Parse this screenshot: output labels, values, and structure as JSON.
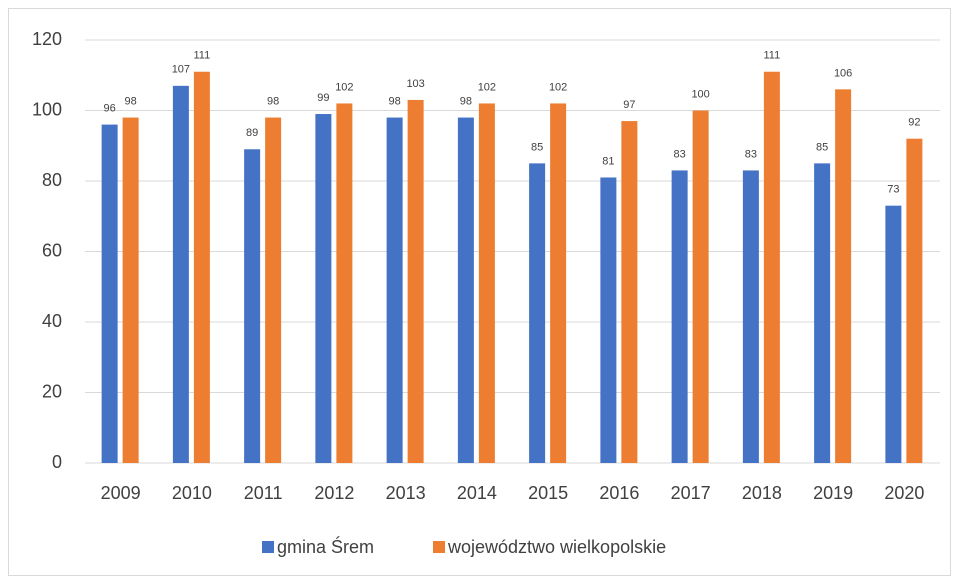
{
  "chart_data": {
    "type": "bar",
    "categories": [
      "2009",
      "2010",
      "2011",
      "2012",
      "2013",
      "2014",
      "2015",
      "2016",
      "2017",
      "2018",
      "2019",
      "2020"
    ],
    "series": [
      {
        "name": "gmina Śrem",
        "color": "#4472c4",
        "values": [
          96,
          107,
          89,
          99,
          98,
          98,
          85,
          81,
          83,
          83,
          85,
          73
        ]
      },
      {
        "name": "województwo wielkopolskie",
        "color": "#ed7d31",
        "values": [
          98,
          111,
          98,
          102,
          103,
          102,
          102,
          97,
          100,
          111,
          106,
          92
        ]
      }
    ],
    "ylim": [
      0,
      120
    ],
    "yticks": [
      0,
      20,
      40,
      60,
      80,
      100,
      120
    ],
    "grid": true,
    "legend": "bottom"
  }
}
